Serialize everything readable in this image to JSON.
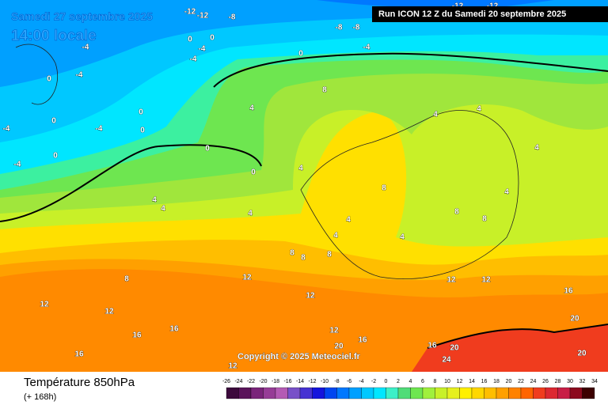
{
  "header": {
    "date": "Samedi 27 septembre 2025",
    "time": "14:00 locale",
    "run": "Run ICON 12 Z du Samedi 20 septembre 2025"
  },
  "copyright": "Copyright © 2025 Meteociel.fr",
  "footer": {
    "title": "Température 850hPa",
    "lead": "(+ 168h)"
  },
  "colorbar": {
    "labels": [
      -26,
      -24,
      -22,
      -20,
      -18,
      -16,
      -14,
      -12,
      -10,
      -8,
      -6,
      -4,
      -2,
      0,
      2,
      4,
      6,
      8,
      10,
      12,
      14,
      16,
      18,
      20,
      22,
      24,
      26,
      28,
      30,
      32,
      34
    ],
    "colors": [
      "#3c0a3c",
      "#5a145a",
      "#7a247a",
      "#963c96",
      "#b45ab4",
      "#7850c8",
      "#4632d2",
      "#1414dc",
      "#0046f0",
      "#0078ff",
      "#00a0ff",
      "#00c8ff",
      "#00e6ff",
      "#3cf0c8",
      "#50dc78",
      "#6ee650",
      "#a0f03c",
      "#c8f028",
      "#e6f01e",
      "#fff000",
      "#ffd700",
      "#ffbe00",
      "#ffa000",
      "#ff8200",
      "#ff6400",
      "#f03c1e",
      "#dc2832",
      "#c81e46",
      "#8c0a1e",
      "#3c0000"
    ]
  },
  "map": {
    "labels": [
      "-12",
      "-12",
      "-8",
      "-8",
      "-8",
      "-12",
      "-12",
      "-4",
      "-4",
      "-4",
      "0",
      "0",
      "0",
      "-4",
      "-4",
      "0",
      "0",
      "-4",
      "0",
      "-4",
      "0",
      "-4",
      "0",
      "0",
      "4",
      "8",
      "4",
      "0",
      "4",
      "4",
      "4",
      "8",
      "4",
      "4",
      "4",
      "4",
      "8",
      "8",
      "4",
      "4",
      "4",
      "8",
      "8",
      "8",
      "8",
      "12",
      "12",
      "12",
      "12",
      "12",
      "12",
      "12",
      "16",
      "16",
      "16",
      "16",
      "16",
      "20",
      "20",
      "24",
      "20",
      "20",
      "16",
      "12"
    ]
  }
}
